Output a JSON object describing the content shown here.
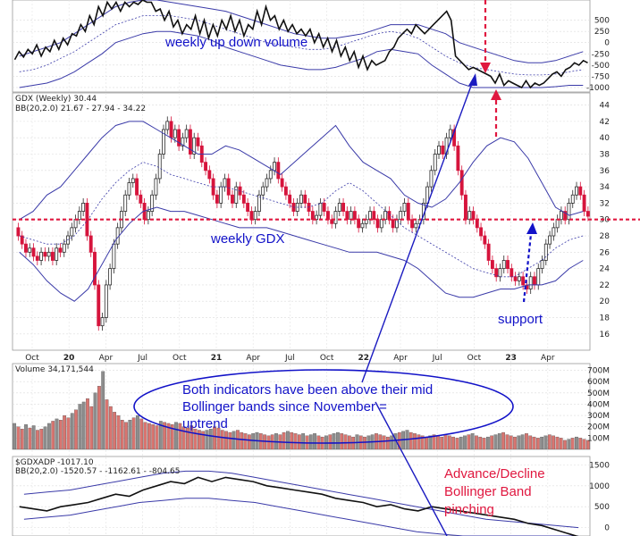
{
  "chart_data": {
    "type": "candlestick",
    "x_ticks": [
      "Oct",
      "20",
      "Apr",
      "Jul",
      "Oct",
      "21",
      "Apr",
      "Jul",
      "Oct",
      "22",
      "Apr",
      "Jul",
      "Oct",
      "23",
      "Apr"
    ],
    "panels": [
      {
        "name": "weekly up down volume",
        "ylim": [
          -1100,
          950
        ],
        "y_ticks": [
          "500",
          "250",
          "0",
          "-250",
          "-500",
          "-750",
          "-1000"
        ],
        "y_tick_values": [
          500,
          250,
          0,
          -250,
          -500,
          -750,
          -1000
        ],
        "series": [
          {
            "name": "up down volume",
            "values": [
              -380,
              -200,
              -320,
              -150,
              -250,
              -50,
              -300,
              -100,
              -200,
              50,
              -150,
              100,
              -50,
              200,
              150,
              400,
              250,
              600,
              400,
              800,
              600,
              900,
              750,
              900,
              700,
              900,
              800,
              900,
              850,
              950,
              900,
              900,
              700,
              750,
              500,
              700,
              350,
              500,
              200,
              400,
              300,
              600,
              200,
              500,
              100,
              400,
              150,
              500,
              300,
              600,
              250,
              500,
              150,
              400,
              300,
              700,
              400,
              800,
              500,
              600,
              300,
              500,
              250,
              400,
              200,
              300,
              150,
              300,
              0,
              200,
              -100,
              100,
              -200,
              50,
              -300,
              -100,
              -400,
              -200,
              -550,
              -300,
              -600,
              -400,
              -500,
              -450,
              -400,
              -200,
              -100,
              100,
              200,
              300,
              200,
              400,
              300,
              200,
              300,
              400,
              500,
              600,
              700,
              500,
              -300,
              -400,
              -500,
              -600,
              -550,
              -600,
              -650,
              -700,
              -750,
              -900,
              -700,
              -950,
              -850,
              -900,
              -950,
              -1000,
              -850,
              -1000,
              -900,
              -950,
              -900,
              -800,
              -700,
              -650,
              -750,
              -600,
              -550,
              -450,
              -500,
              -400,
              -450
            ]
          },
          {
            "name": "BB upper",
            "values": [
              -300,
              -200,
              -100,
              0,
              200,
              400,
              600,
              800,
              900,
              950,
              950,
              900,
              850,
              800,
              750,
              700,
              600,
              500,
              400,
              300,
              200,
              150,
              100,
              100,
              150,
              200,
              300,
              400,
              400,
              400,
              300,
              200,
              0,
              -100,
              -200,
              -300,
              -400,
              -450,
              -450,
              -400,
              -300,
              -200
            ]
          },
          {
            "name": "BB mid",
            "values": [
              -650,
              -600,
              -500,
              -350,
              -200,
              0,
              200,
              400,
              500,
              600,
              600,
              600,
              550,
              500,
              400,
              300,
              200,
              100,
              0,
              -50,
              -100,
              -150,
              -150,
              -100,
              0,
              100,
              200,
              250,
              200,
              100,
              -100,
              -300,
              -450,
              -550,
              -600,
              -650,
              -700,
              -720,
              -720,
              -700,
              -650,
              -600
            ]
          },
          {
            "name": "BB lower",
            "values": [
              -1000,
              -950,
              -900,
              -800,
              -650,
              -450,
              -250,
              0,
              100,
              200,
              250,
              250,
              200,
              150,
              50,
              -100,
              -200,
              -300,
              -400,
              -500,
              -550,
              -600,
              -600,
              -550,
              -450,
              -350,
              -200,
              -150,
              -200,
              -250,
              -500,
              -700,
              -900,
              -1000,
              -1000,
              -1000,
              -1000,
              -1000,
              -1000,
              -980,
              -950,
              -950
            ]
          }
        ],
        "annotation": "weekly up down volume"
      },
      {
        "name": "GDX (Weekly)",
        "header": "GDX (Weekly) 30.44",
        "bb_label": "BB(20,2.0) 21.67 - 27.94 - 34.22",
        "ylim": [
          15,
          44.5
        ],
        "y_ticks": [
          "44",
          "42",
          "40",
          "38",
          "36",
          "34",
          "32",
          "30",
          "28",
          "26",
          "24",
          "22",
          "20",
          "18",
          "16"
        ],
        "y_tick_values": [
          44,
          42,
          40,
          38,
          36,
          34,
          32,
          30,
          28,
          26,
          24,
          22,
          20,
          18,
          16
        ],
        "closes": [
          29,
          28,
          27,
          26,
          26.5,
          25.5,
          25,
          26,
          25.5,
          26,
          25,
          26.5,
          26,
          27,
          28,
          29,
          30,
          31,
          32,
          28,
          26,
          22,
          17,
          18,
          22,
          24,
          27,
          29,
          31,
          33,
          34.5,
          35,
          33,
          32,
          30,
          31,
          33,
          35,
          38,
          41,
          42,
          40,
          41,
          39,
          40,
          41,
          38,
          40,
          39,
          37,
          36,
          35,
          33,
          32,
          34,
          35,
          33,
          32,
          34,
          33,
          32,
          31,
          30,
          31,
          33,
          34,
          35,
          36,
          37,
          35,
          34,
          33,
          32,
          31,
          32,
          33,
          32,
          31,
          30,
          30.5,
          32,
          31,
          30,
          29.5,
          31,
          32,
          31,
          30,
          31,
          30,
          29,
          29.5,
          30,
          31,
          30,
          29,
          30,
          31,
          30,
          29,
          30,
          31,
          32,
          30,
          29,
          29.5,
          30,
          32,
          34,
          36,
          38,
          39,
          38,
          40,
          41,
          39,
          36,
          33,
          30,
          31,
          30,
          29,
          28,
          27,
          25,
          24,
          23,
          24,
          25,
          24,
          23,
          22.5,
          23,
          22,
          21.5,
          23,
          22,
          24,
          25,
          27,
          28,
          29,
          30,
          31,
          30,
          32,
          33,
          34,
          33,
          31,
          30.4
        ],
        "series_bb_upper": [
          30,
          31,
          33,
          34,
          36,
          38,
          40,
          41.5,
          42,
          42,
          41,
          40,
          39,
          38,
          38,
          39,
          38.5,
          37.5,
          36.5,
          35.5,
          37,
          38.5,
          40,
          41.5,
          39,
          37,
          36,
          35,
          33,
          32,
          31.5,
          32.5,
          34.5,
          37,
          39,
          40,
          39.5,
          37.5,
          34.5,
          31.5,
          30.5,
          31
        ],
        "series_bb_mid": [
          28,
          27.5,
          27,
          27,
          28,
          30,
          32.5,
          34.5,
          36,
          37,
          36.5,
          35.5,
          35,
          34.5,
          34,
          34,
          33.5,
          33,
          32.5,
          32,
          31.5,
          31.5,
          32,
          33.5,
          34.5,
          33.5,
          32,
          30.5,
          29,
          28,
          27,
          26,
          25,
          24,
          23.5,
          23,
          23,
          24,
          25,
          26.5,
          27.5,
          28
        ],
        "series_bb_lower": [
          26,
          24.5,
          22.5,
          21,
          20,
          21.5,
          24.5,
          27.5,
          29.5,
          31,
          31.5,
          31,
          31,
          30.5,
          30,
          29.5,
          29,
          29,
          29,
          28.5,
          28,
          27.5,
          27,
          26.5,
          26,
          26,
          26,
          25.5,
          25,
          24,
          22.5,
          21,
          20.5,
          20.5,
          21,
          21.5,
          21.5,
          22,
          22,
          22.5,
          24,
          25
        ],
        "reference_line": 30,
        "annotations": [
          "weekly GDX",
          "support"
        ]
      },
      {
        "name": "Volume",
        "header": "Volume 34,171,544",
        "ylim": [
          0,
          760
        ],
        "y_ticks": [
          "700M",
          "600M",
          "500M",
          "400M",
          "300M",
          "200M",
          "100M"
        ],
        "y_tick_values": [
          700,
          600,
          500,
          400,
          300,
          200,
          100
        ],
        "values": [
          230,
          200,
          180,
          220,
          190,
          210,
          170,
          180,
          200,
          230,
          250,
          270,
          260,
          300,
          280,
          320,
          350,
          400,
          420,
          450,
          380,
          500,
          560,
          690,
          440,
          380,
          330,
          300,
          260,
          240,
          260,
          280,
          300,
          270,
          240,
          230,
          220,
          210,
          250,
          240,
          230,
          220,
          240,
          230,
          200,
          190,
          210,
          180,
          170,
          160,
          170,
          180,
          200,
          190,
          170,
          160,
          150,
          160,
          170,
          150,
          140,
          130,
          140,
          150,
          140,
          130,
          120,
          130,
          140,
          130,
          150,
          160,
          150,
          140,
          130,
          140,
          120,
          130,
          140,
          120,
          110,
          120,
          130,
          140,
          150,
          140,
          130,
          120,
          110,
          130,
          120,
          110,
          120,
          130,
          140,
          130,
          120,
          110,
          120,
          140,
          150,
          160,
          170,
          150,
          140,
          130,
          120,
          110,
          120,
          130,
          120,
          110,
          130,
          120,
          110,
          100,
          110,
          120,
          130,
          140,
          120,
          110,
          100,
          110,
          120,
          130,
          140,
          150,
          130,
          120,
          110,
          120,
          130,
          140,
          120,
          110,
          100,
          110,
          120,
          130,
          120,
          110,
          100,
          80,
          90,
          100,
          110,
          100,
          90,
          80
        ]
      },
      {
        "name": "$GDXADP",
        "header": "$GDXADP -1017.10",
        "bb_label": "BB(20,2.0) -1520.57 - -1162.61 - -804.65",
        "ylim": [
          -200,
          1700
        ],
        "y_ticks": [
          "1500",
          "1000",
          "500",
          "0"
        ],
        "y_tick_values": [
          1500,
          1000,
          500,
          0
        ],
        "series": [
          {
            "name": "A/D line",
            "values": [
              500,
              450,
              400,
              500,
              550,
              600,
              700,
              800,
              750,
              900,
              1000,
              1100,
              1050,
              1200,
              1100,
              1200,
              1150,
              1100,
              1000,
              950,
              900,
              850,
              800,
              700,
              650,
              600,
              500,
              550,
              450,
              400,
              500,
              450,
              400,
              350,
              300,
              250,
              200,
              100,
              50,
              -50,
              -150,
              -250
            ]
          },
          {
            "name": "BB upper",
            "values": [
              800,
              850,
              900,
              1000,
              1100,
              1200,
              1300,
              1350,
              1350,
              1300,
              1200,
              1100,
              1000,
              900,
              800,
              700,
              600,
              500,
              400,
              300,
              200,
              150,
              100,
              50,
              0
            ]
          },
          {
            "name": "BB lower",
            "values": [
              200,
              250,
              300,
              400,
              500,
              600,
              650,
              700,
              700,
              650,
              600,
              500,
              400,
              300,
              200,
              100,
              0,
              -100,
              -150,
              -200,
              -200,
              -200,
              -200,
              -200,
              -200
            ]
          }
        ],
        "annotation": "Advance/Decline Bollinger Band pinching"
      }
    ],
    "annotations": {
      "top_label": "weekly up down volume",
      "gdx_label": "weekly GDX",
      "support_label": "support",
      "ellipse_text": "Both indicators have been above their mid Bollinger bands since November = uptrend",
      "ad_label": "Advance/Decline Bollinger Band pinching"
    }
  },
  "text": {
    "top_l1": "weekly up down volume",
    "gdx_header": "GDX (Weekly) 30.44",
    "gdx_bb": "BB(20,2.0) 21.67 - 27.94 - 34.22",
    "gdx_label": "weekly GDX",
    "support": "support",
    "vol_header": "Volume 34,171,544",
    "ell_l1": "Both indicators have been above their mid",
    "ell_l2": "Bollinger bands since November =",
    "ell_l3": "uptrend",
    "ad_header": "$GDXADP -1017.10",
    "ad_bb": "BB(20,2.0) -1520.57 - -1162.61 - -804.65",
    "ad_l1": "Advance/Decline",
    "ad_l2": "Bollinger Band",
    "ad_l3": "pinching"
  },
  "colors": {
    "up": "#2a2a2a",
    "down": "#d6143c",
    "band": "#3a3aa8",
    "annotation_blue": "#1212c8",
    "annotation_red": "#e0173f",
    "volume_up": "#8d8d8d",
    "volume_down": "#d97570"
  }
}
